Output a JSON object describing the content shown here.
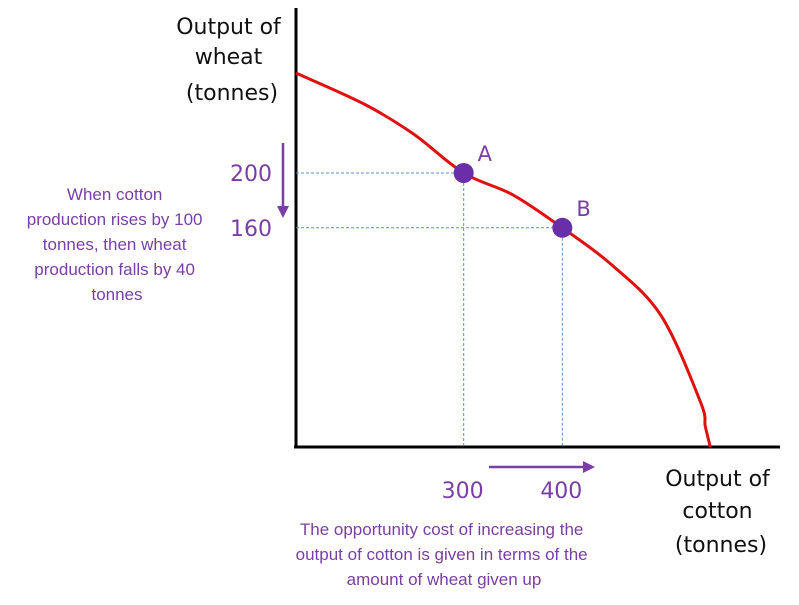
{
  "chart_data": {
    "type": "line",
    "title": "",
    "ylabel_lines": [
      "Output of",
      "wheat",
      "(tonnes)"
    ],
    "xlabel_lines": [
      "Output of",
      "cotton",
      "(tonnes)"
    ],
    "x_ticks": [
      {
        "value": 300,
        "label": "300"
      },
      {
        "value": 400,
        "label": "400"
      }
    ],
    "y_ticks": [
      {
        "value": 200,
        "label": "200"
      },
      {
        "value": 160,
        "label": "160"
      }
    ],
    "xlim": [
      130,
      570
    ],
    "ylim": [
      0,
      273
    ],
    "series": [
      {
        "x": [
          130,
          200,
          250,
          300,
          350,
          400,
          450,
          500,
          540,
          545,
          550
        ],
        "y": [
          273,
          250,
          228,
          200,
          184,
          160,
          133,
          96,
          33,
          15,
          0
        ]
      }
    ],
    "points": [
      {
        "label": "A",
        "x": 300,
        "y": 200
      },
      {
        "label": "B",
        "x": 400,
        "y": 160
      }
    ],
    "annotations": {
      "left_note_lines": [
        "When cotton",
        "production rises by 100",
        "tonnes, then wheat",
        "production falls by 40",
        "tonnes"
      ],
      "bottom_note_lines": [
        "The opportunity cost of increasing the",
        "output of cotton is given in terms of the",
        "amount of wheat given up"
      ]
    },
    "grid": false,
    "colors": {
      "curve": "#e0100e",
      "point": "#6a2fa8",
      "accent_text": "#7a3ea6",
      "guide": "#5b8ed8",
      "axis": "#000000"
    }
  }
}
